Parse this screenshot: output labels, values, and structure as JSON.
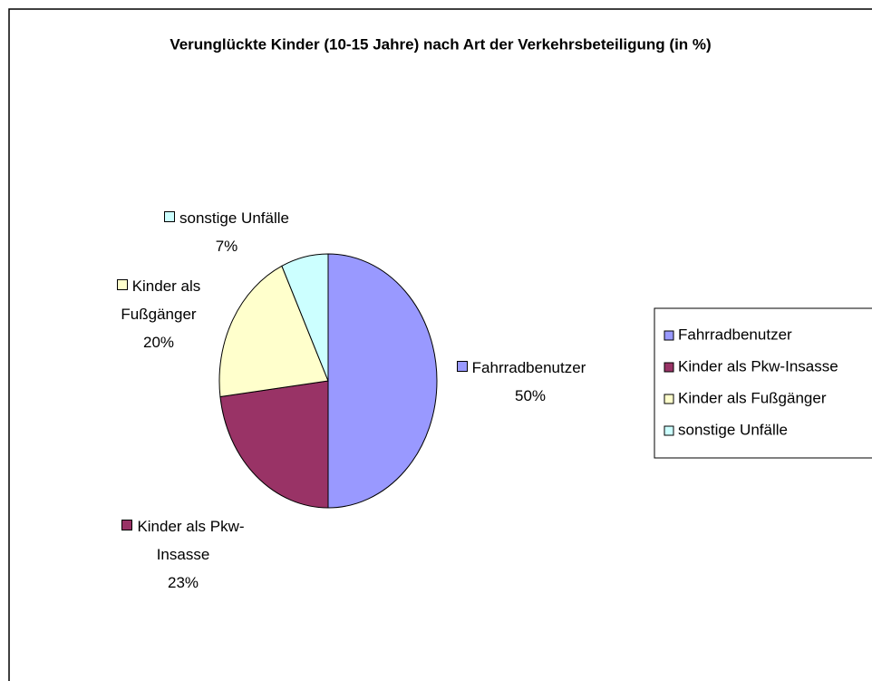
{
  "chart_data": {
    "type": "pie",
    "title": "Verunglückte Kinder (10-15 Jahre) nach Art der Verkehrsbeteiligung (in %)",
    "categories": [
      "Fahrradbenutzer",
      "Kinder als Pkw-Insasse",
      "Kinder als Fußgänger",
      "sonstige Unfälle"
    ],
    "values": [
      50,
      23,
      20,
      7
    ],
    "value_labels": [
      "50%",
      "23%",
      "20%",
      "7%"
    ],
    "colors": [
      "#9999ff",
      "#993366",
      "#ffffcc",
      "#ccffff"
    ],
    "legend": "right"
  }
}
